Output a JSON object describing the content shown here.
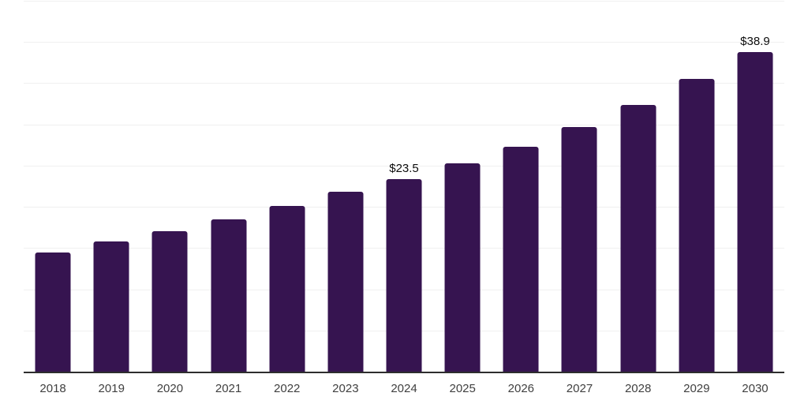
{
  "chart_data": {
    "type": "bar",
    "title": "",
    "xlabel": "",
    "ylabel": "",
    "categories": [
      "2018",
      "2019",
      "2020",
      "2021",
      "2022",
      "2023",
      "2024",
      "2025",
      "2026",
      "2027",
      "2028",
      "2029",
      "2030"
    ],
    "values": [
      14.6,
      15.9,
      17.1,
      18.6,
      20.2,
      21.9,
      23.5,
      25.4,
      27.4,
      29.8,
      32.5,
      35.6,
      38.9
    ],
    "data_labels": {
      "2024": "$23.5",
      "2030": "$38.9"
    },
    "ylim": [
      0,
      45
    ],
    "gridline_step": 5,
    "grid": "horizontal",
    "legend": "none",
    "y_axis_tick_labels": "none",
    "colors": {
      "bar": "#361450",
      "axis_line": "#2e2e2e",
      "gridline": "#f0f0f0",
      "tick_label": "#404040",
      "data_label": "#0d0d0d",
      "background": "#ffffff"
    }
  }
}
